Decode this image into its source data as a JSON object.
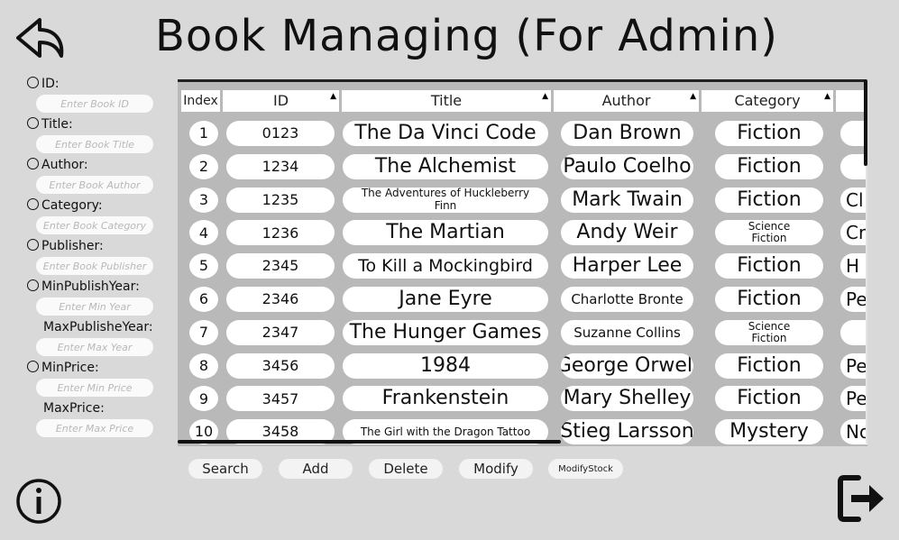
{
  "title": "Book Managing (For Admin)",
  "icons": {
    "back": "back-arrow-icon",
    "info": "info-icon",
    "exit": "logout-icon"
  },
  "filters": [
    {
      "label": "ID:",
      "placeholder": "Enter Book ID",
      "radio": true
    },
    {
      "label": "Title:",
      "placeholder": "Enter Book Title",
      "radio": true
    },
    {
      "label": "Author:",
      "placeholder": "Enter Book Author",
      "radio": true
    },
    {
      "label": "Category:",
      "placeholder": "Enter Book Category",
      "radio": true
    },
    {
      "label": "Publisher:",
      "placeholder": "Enter Book Publisher",
      "radio": true
    },
    {
      "label": "MinPublishYear:",
      "placeholder": "Enter Min Year",
      "radio": true
    },
    {
      "label": "MaxPublisheYear:",
      "placeholder": "Enter Max Year",
      "radio": false
    },
    {
      "label": "MinPrice:",
      "placeholder": "Enter Min Price",
      "radio": true
    },
    {
      "label": "MaxPrice:",
      "placeholder": "Enter Max Price",
      "radio": false
    }
  ],
  "table": {
    "columns": [
      "Index",
      "ID",
      "Title",
      "Author",
      "Category"
    ],
    "rows": [
      {
        "index": "1",
        "id": "0123",
        "title": "The Da Vinci Code",
        "author": "Dan Brown",
        "category": "Fiction",
        "next": ""
      },
      {
        "index": "2",
        "id": "1234",
        "title": "The Alchemist",
        "author": "Paulo Coelho",
        "category": "Fiction",
        "next": ""
      },
      {
        "index": "3",
        "id": "1235",
        "title": "The Adventures of Huckleberry Finn",
        "author": "Mark Twain",
        "category": "Fiction",
        "next": "Cl"
      },
      {
        "index": "4",
        "id": "1236",
        "title": "The Martian",
        "author": "Andy Weir",
        "category": "Science Fiction",
        "next": "Cro"
      },
      {
        "index": "5",
        "id": "2345",
        "title": "To Kill a Mockingbird",
        "author": "Harper Lee",
        "category": "Fiction",
        "next": "H"
      },
      {
        "index": "6",
        "id": "2346",
        "title": "Jane Eyre",
        "author": "Charlotte Bronte",
        "category": "Fiction",
        "next": "Pe"
      },
      {
        "index": "7",
        "id": "2347",
        "title": "The Hunger Games",
        "author": "Suzanne Collins",
        "category": "Science Fiction",
        "next": ""
      },
      {
        "index": "8",
        "id": "3456",
        "title": "1984",
        "author": "George Orwell",
        "category": "Fiction",
        "next": "Pe"
      },
      {
        "index": "9",
        "id": "3457",
        "title": "Frankenstein",
        "author": "Mary Shelley",
        "category": "Fiction",
        "next": "Pe"
      },
      {
        "index": "10",
        "id": "3458",
        "title": "The Girl with the Dragon Tattoo",
        "author": "Stieg Larsson",
        "category": "Mystery",
        "next": "No"
      }
    ]
  },
  "buttons": {
    "search": "Search",
    "add": "Add",
    "delete": "Delete",
    "modify": "Modify",
    "modify_stock": "ModifyStock"
  }
}
